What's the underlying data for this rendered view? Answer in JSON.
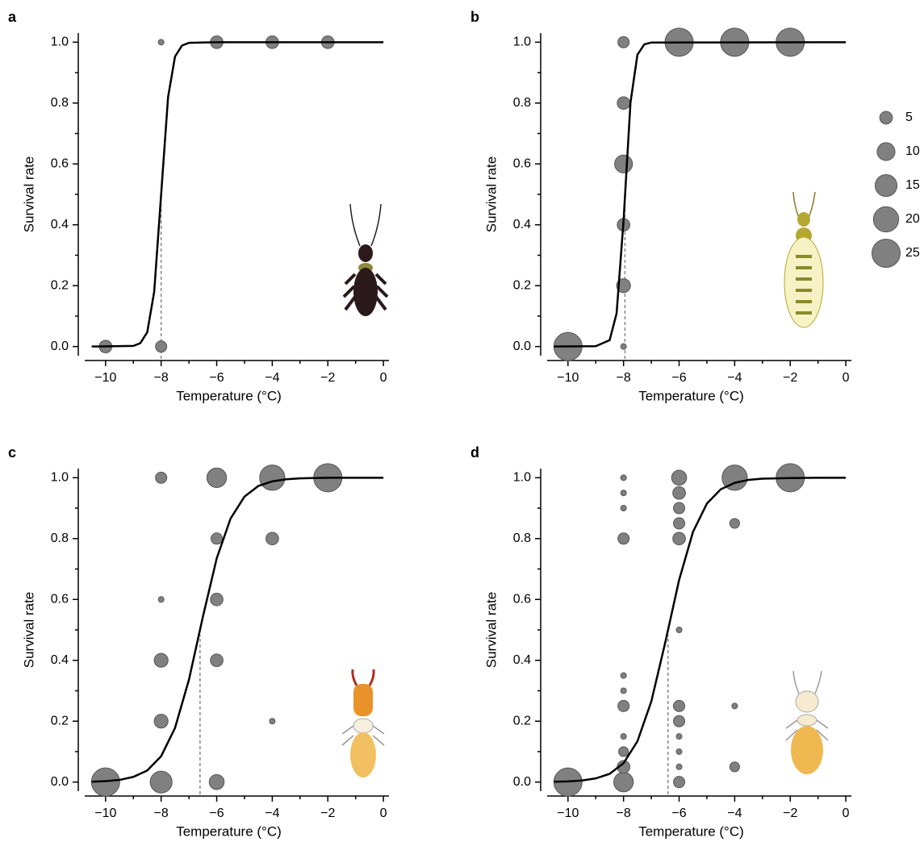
{
  "chart_data": [
    {
      "type": "bubble",
      "panel_label": "a",
      "xlabel": "Temperature (°C)",
      "ylabel": "Survival rate",
      "x": [
        -10,
        -8,
        -8,
        -6,
        -4,
        -2
      ],
      "values": [
        0,
        0,
        1,
        1,
        1,
        1
      ],
      "sizes": [
        5,
        4,
        1,
        5,
        5,
        5
      ],
      "color": "#808080",
      "curve": {
        "color": "#000000",
        "x": [
          -10.5,
          -9,
          -8.75,
          -8.5,
          -8.25,
          -8,
          -7.75,
          -7.5,
          -7.25,
          -7,
          -6,
          0
        ],
        "values": [
          0,
          0.002,
          0.011,
          0.047,
          0.18,
          0.5,
          0.82,
          0.953,
          0.989,
          0.998,
          1,
          1
        ]
      },
      "lt50": -8,
      "xlim": [
        -10.75,
        0.2
      ],
      "ylim": [
        -0.03,
        1.03
      ],
      "xticks": [
        {
          "value": -10,
          "label": "−10"
        },
        {
          "value": -8,
          "label": "−8"
        },
        {
          "value": -6,
          "label": "−6"
        },
        {
          "value": -4,
          "label": "−4"
        },
        {
          "value": -2,
          "label": "−2"
        },
        0
      ],
      "xminorticks": [
        -9,
        -7,
        -5,
        -3,
        -1
      ],
      "yticks": [
        {
          "value": 0,
          "label": "0.0"
        },
        0.2,
        0.4,
        0.6,
        0.8,
        {
          "value": 1,
          "label": "1.0"
        }
      ],
      "yminorticks": [
        0.1,
        0.3,
        0.5,
        0.7,
        0.9
      ]
    },
    {
      "type": "bubble",
      "panel_label": "b",
      "xlabel": "Temperature (°C)",
      "ylabel": "Survival rate",
      "x": [
        -10,
        -8,
        -8,
        -8,
        -8,
        -8,
        -8,
        -6,
        -4,
        -2
      ],
      "values": [
        0,
        0,
        0.2,
        0.4,
        0.6,
        0.8,
        1,
        1,
        1,
        1
      ],
      "sizes": [
        25,
        1,
        6,
        5,
        10,
        5,
        4,
        25,
        25,
        25
      ],
      "color": "#808080",
      "curve": {
        "color": "#000000",
        "x": [
          -10.5,
          -9,
          -8.5,
          -8.25,
          -8,
          -7.75,
          -7.5,
          -7.25,
          -7,
          0
        ],
        "values": [
          0,
          0.001,
          0.021,
          0.109,
          0.413,
          0.802,
          0.959,
          0.993,
          0.999,
          1
        ]
      },
      "lt50": -7.95,
      "xlim": [
        -10.75,
        0.2
      ],
      "ylim": [
        -0.03,
        1.03
      ],
      "xticks": [
        {
          "value": -10,
          "label": "−10"
        },
        {
          "value": -8,
          "label": "−8"
        },
        {
          "value": -6,
          "label": "−6"
        },
        {
          "value": -4,
          "label": "−4"
        },
        {
          "value": -2,
          "label": "−2"
        },
        0
      ],
      "xminorticks": [
        -9,
        -7,
        -5,
        -3,
        -1
      ],
      "yticks": [
        {
          "value": 0,
          "label": "0.0"
        },
        0.2,
        0.4,
        0.6,
        0.8,
        {
          "value": 1,
          "label": "1.0"
        }
      ],
      "yminorticks": [
        0.1,
        0.3,
        0.5,
        0.7,
        0.9
      ]
    },
    {
      "type": "bubble",
      "panel_label": "c",
      "xlabel": "Temperature (°C)",
      "ylabel": "Survival rate",
      "x": [
        -10,
        -8,
        -8,
        -8,
        -8,
        -8,
        -6,
        -6,
        -6,
        -6,
        -6,
        -4,
        -4,
        -4,
        -2
      ],
      "values": [
        0,
        0,
        0.2,
        0.4,
        0.6,
        1,
        0,
        0.4,
        0.6,
        0.8,
        1,
        0.2,
        0.8,
        1,
        1
      ],
      "sizes": [
        25,
        15,
        6,
        6,
        1,
        4,
        7,
        5,
        5,
        4,
        12,
        1,
        5,
        20,
        25
      ],
      "color": "#808080",
      "curve": {
        "color": "#000000",
        "x": [
          -10.5,
          -10,
          -9.5,
          -9,
          -8.5,
          -8,
          -7.5,
          -7,
          -6.5,
          -6,
          -5.5,
          -5,
          -4.5,
          -4,
          -3.5,
          -3,
          -2,
          -1,
          0
        ],
        "values": [
          0.001,
          0.003,
          0.007,
          0.017,
          0.038,
          0.085,
          0.178,
          0.336,
          0.542,
          0.735,
          0.866,
          0.938,
          0.973,
          0.988,
          0.995,
          0.998,
          1,
          1,
          1
        ]
      },
      "lt50": -6.6,
      "xlim": [
        -10.75,
        0.2
      ],
      "ylim": [
        -0.03,
        1.03
      ],
      "xticks": [
        {
          "value": -10,
          "label": "−10"
        },
        {
          "value": -8,
          "label": "−8"
        },
        {
          "value": -6,
          "label": "−6"
        },
        {
          "value": -4,
          "label": "−4"
        },
        {
          "value": -2,
          "label": "−2"
        },
        0
      ],
      "xminorticks": [
        -9,
        -7,
        -5,
        -3,
        -1
      ],
      "yticks": [
        {
          "value": 0,
          "label": "0.0"
        },
        0.2,
        0.4,
        0.6,
        0.8,
        {
          "value": 1,
          "label": "1.0"
        }
      ],
      "yminorticks": [
        0.1,
        0.3,
        0.5,
        0.7,
        0.9
      ]
    },
    {
      "type": "bubble",
      "panel_label": "d",
      "xlabel": "Temperature (°C)",
      "ylabel": "Survival rate",
      "x": [
        -10,
        -8,
        -8,
        -8,
        -8,
        -8,
        -8,
        -8,
        -8,
        -8,
        -8,
        -8,
        -6,
        -6,
        -6,
        -6,
        -6,
        -6,
        -6,
        -6,
        -6,
        -6,
        -6,
        -6,
        -4,
        -4,
        -4,
        -4,
        -2
      ],
      "values": [
        0,
        0,
        0.05,
        0.1,
        0.15,
        0.25,
        0.3,
        0.35,
        0.8,
        0.9,
        0.95,
        1,
        0,
        0.05,
        0.1,
        0.15,
        0.2,
        0.25,
        0.5,
        0.8,
        0.85,
        0.9,
        0.95,
        1,
        1,
        0.85,
        0.25,
        0.05,
        1
      ],
      "sizes": [
        25,
        12,
        5,
        3,
        1,
        4,
        1,
        1,
        4,
        1,
        1,
        1,
        4,
        1,
        1,
        1,
        4,
        4,
        1,
        5,
        4,
        4,
        5,
        7,
        20,
        3,
        1,
        3,
        25
      ],
      "color": "#808080",
      "curve": {
        "color": "#000000",
        "x": [
          -10.5,
          -10,
          -9.5,
          -9,
          -8.5,
          -8,
          -7.5,
          -7,
          -6.5,
          -6,
          -5.5,
          -5,
          -4.5,
          -4,
          -3.5,
          -3,
          -2,
          -1,
          0
        ],
        "values": [
          0.001,
          0.002,
          0.005,
          0.012,
          0.027,
          0.062,
          0.134,
          0.265,
          0.458,
          0.664,
          0.822,
          0.915,
          0.962,
          0.983,
          0.993,
          0.997,
          0.999,
          1,
          1
        ]
      },
      "lt50": -6.4,
      "xlim": [
        -10.75,
        0.2
      ],
      "ylim": [
        -0.03,
        1.03
      ],
      "xticks": [
        {
          "value": -10,
          "label": "−10"
        },
        {
          "value": -8,
          "label": "−8"
        },
        {
          "value": -6,
          "label": "−6"
        },
        {
          "value": -4,
          "label": "−4"
        },
        {
          "value": -2,
          "label": "−2"
        },
        0
      ],
      "xminorticks": [
        -9,
        -7,
        -5,
        -3,
        -1
      ],
      "yticks": [
        {
          "value": 0,
          "label": "0.0"
        },
        0.2,
        0.4,
        0.6,
        0.8,
        {
          "value": 1,
          "label": "1.0"
        }
      ],
      "yminorticks": [
        0.1,
        0.3,
        0.5,
        0.7,
        0.9
      ]
    }
  ],
  "size_legend": {
    "values": [
      5,
      10,
      15,
      20,
      25
    ],
    "color": "#808080"
  }
}
